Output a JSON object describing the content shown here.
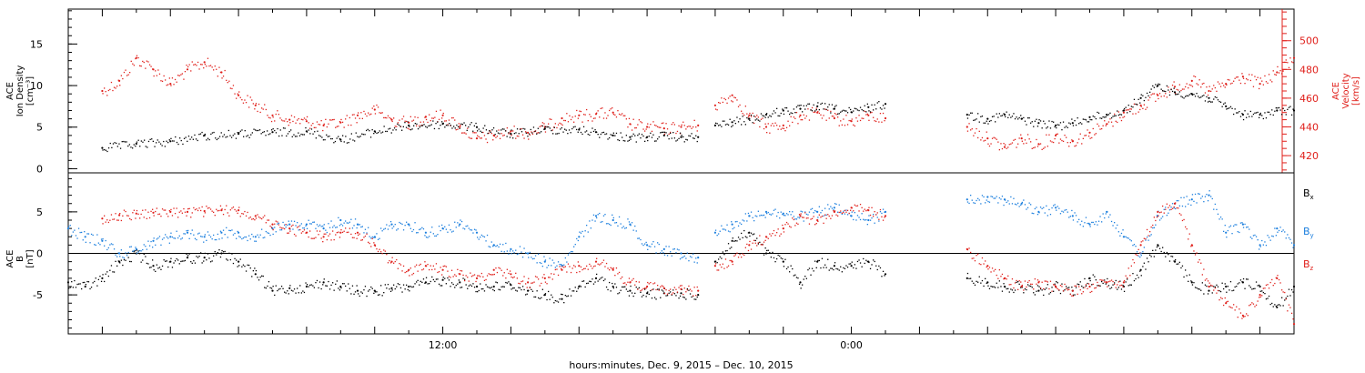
{
  "chart_data": [
    {
      "type": "scatter",
      "panel": "top",
      "ylabel_left": [
        "ACE",
        "Ion Density",
        "[cm⁻³]"
      ],
      "ylabel_right": [
        "ACE",
        "Velocity",
        "[km/s]"
      ],
      "ylim_left": [
        -0.5,
        19.2
      ],
      "ylim_right": [
        408,
        522
      ],
      "yticks_left": [
        0,
        5,
        10,
        15
      ],
      "yticks_right": [
        420,
        440,
        460,
        480,
        500
      ],
      "series": [
        {
          "axis": "left",
          "color": "#000000",
          "segments": [
            {
              "x": [
                0,
                1,
                2,
                3,
                4,
                5,
                6,
                7,
                8,
                9,
                10,
                11,
                12,
                13,
                14,
                14.5,
                15,
                15.5,
                16,
                16.5,
                17,
                17.5
              ],
              "y": [
                2.5,
                3,
                3.3,
                4,
                4.2,
                4.4,
                4.5,
                3.5,
                4.5,
                5.2,
                5.4,
                5,
                4.2,
                4.8,
                4.7,
                4.4,
                4.0,
                3.8,
                3.8,
                4.0,
                3.8,
                3.8
              ]
            },
            {
              "x": [
                18,
                18.5,
                19,
                19.5,
                20,
                20.5,
                21,
                21.5,
                22,
                22.5,
                23
              ],
              "y": [
                5.2,
                5.6,
                6,
                6.5,
                7,
                7.2,
                7.5,
                7.2,
                6.8,
                7.4,
                7.8
              ]
            },
            {
              "x": [
                25.4,
                26,
                26.5,
                27,
                27.5,
                28,
                28.5,
                29,
                29.5,
                30,
                30.5,
                31,
                31.5,
                32,
                32.5,
                33,
                33.5,
                34,
                34.5,
                35
              ],
              "y": [
                6.5,
                6,
                6.5,
                6,
                5.5,
                5.2,
                5.5,
                6.2,
                6.5,
                7,
                8.5,
                10,
                9.2,
                9,
                8.5,
                7.5,
                6.5,
                6.5,
                7,
                7
              ]
            }
          ]
        },
        {
          "axis": "right",
          "color": "#e0201b",
          "segments": [
            {
              "x": [
                0,
                0.5,
                1,
                1.5,
                2,
                2.5,
                3,
                3.5,
                4,
                4.5,
                5,
                5.5,
                6,
                6.5,
                7,
                7.5,
                8,
                8.5,
                9,
                9.5,
                10,
                10.5,
                11,
                11.5,
                12,
                12.5,
                13,
                13.5,
                14,
                14.5,
                15,
                15.5,
                16,
                16.5,
                17,
                17.5
              ],
              "y": [
                465,
                472,
                488,
                480,
                470,
                480,
                485,
                478,
                462,
                455,
                448,
                445,
                444,
                441,
                443,
                448,
                452,
                445,
                443,
                447,
                448,
                440,
                432,
                434,
                437,
                436,
                440,
                446,
                448,
                449,
                450,
                442,
                440,
                439,
                440,
                441
              ]
            },
            {
              "x": [
                18,
                18.5,
                19,
                19.5,
                20,
                20.5,
                21,
                21.5,
                22,
                22.5,
                23
              ],
              "y": [
                455,
                462,
                448,
                440,
                441,
                448,
                450,
                446,
                444,
                448,
                446
              ]
            },
            {
              "x": [
                25.4,
                26,
                26.5,
                27,
                27.5,
                28,
                28.5,
                29,
                29.5,
                30,
                30.5,
                31,
                31.5,
                32,
                32.5,
                33,
                33.5,
                34,
                34.5,
                35
              ],
              "y": [
                440,
                432,
                426,
                432,
                428,
                434,
                430,
                436,
                442,
                450,
                455,
                462,
                468,
                472,
                465,
                470,
                475,
                470,
                478,
                488
              ]
            }
          ]
        }
      ]
    },
    {
      "type": "scatter",
      "panel": "bottom",
      "ylabel": [
        "ACE",
        "B",
        "[nT]"
      ],
      "ylim": [
        -9.7,
        9.7
      ],
      "yticks": [
        -5,
        0,
        5
      ],
      "zero_line": true,
      "xlabel": "hours:minutes, Dec.  9, 2015 – Dec. 10, 2015",
      "xlim": [
        -1,
        35
      ],
      "xticks": [
        {
          "x": 10,
          "label": "12:00"
        },
        {
          "x": 22,
          "label": "0:00"
        }
      ],
      "legend": {
        "placement": "right",
        "labels": [
          {
            "text": "B",
            "sub": "x",
            "color": "#000000"
          },
          {
            "text": "B",
            "sub": "y",
            "color": "#1c7fde"
          },
          {
            "text": "B",
            "sub": "z",
            "color": "#e0201b"
          }
        ]
      },
      "series": [
        {
          "name": "Bx",
          "color": "#000000",
          "segments": [
            {
              "x": [
                -1,
                -0.5,
                0,
                0.5,
                1,
                1.5,
                2,
                2.5,
                3,
                3.5,
                4,
                4.5,
                5,
                5.5,
                6,
                6.5,
                7,
                7.5,
                8,
                8.5,
                9,
                9.5,
                10,
                10.5,
                11,
                11.5,
                12,
                12.5,
                13,
                13.5,
                14,
                14.5,
                15,
                15.5,
                16,
                16.5,
                17,
                17.5
              ],
              "y": [
                -3.5,
                -4,
                -3,
                -1,
                0,
                -1.5,
                -1,
                -0.5,
                -0.5,
                0,
                -1,
                -2.5,
                -4.5,
                -4.2,
                -4,
                -3.5,
                -4,
                -4.5,
                -4.5,
                -4.2,
                -4,
                -3.5,
                -3.2,
                -3.5,
                -4,
                -4,
                -3.8,
                -4.5,
                -5,
                -5.5,
                -4,
                -3,
                -4,
                -4.5,
                -4.8,
                -4.8,
                -4.8,
                -5
              ]
            },
            {
              "x": [
                18,
                18.5,
                19,
                19.5,
                20,
                20.5,
                21,
                21.5,
                22,
                22.5,
                23
              ],
              "y": [
                -1,
                1.5,
                2.5,
                0,
                -1,
                -3.5,
                -1,
                -1.5,
                -1.5,
                -1,
                -2.5
              ]
            },
            {
              "x": [
                25.4,
                26,
                26.5,
                27,
                27.5,
                28,
                28.5,
                29,
                29.5,
                30,
                30.5,
                31,
                31.5,
                32,
                32.5,
                33,
                33.5,
                34,
                34.5,
                35
              ],
              "y": [
                -3,
                -3.5,
                -4,
                -4,
                -4.5,
                -4,
                -4.5,
                -3,
                -3.5,
                -4,
                -2,
                1,
                -1,
                -3.5,
                -4.5,
                -4,
                -3.5,
                -4,
                -6.5,
                -4
              ]
            }
          ]
        },
        {
          "name": "By",
          "color": "#1c7fde",
          "segments": [
            {
              "x": [
                -1,
                -0.5,
                0,
                0.5,
                1,
                1.5,
                2,
                2.5,
                3,
                3.5,
                4,
                4.5,
                5,
                5.5,
                6,
                6.5,
                7,
                7.5,
                8,
                8.5,
                9,
                9.5,
                10,
                10.5,
                11,
                11.5,
                12,
                12.5,
                13,
                13.5,
                14,
                14.5,
                15,
                15.5,
                16,
                16.5,
                17,
                17.5
              ],
              "y": [
                3,
                2,
                1.5,
                0,
                0.5,
                1.5,
                2,
                2.5,
                2,
                2.5,
                2.5,
                2,
                3,
                3.5,
                3.5,
                3,
                4,
                3.5,
                2,
                3.5,
                3.5,
                2.5,
                3,
                3.5,
                2.5,
                1,
                0.5,
                0,
                -1,
                -1.5,
                2,
                4.5,
                4,
                3.5,
                1,
                0.5,
                0,
                -0.5
              ]
            },
            {
              "x": [
                18,
                18.5,
                19,
                19.5,
                20,
                20.5,
                21,
                21.5,
                22,
                22.5,
                23
              ],
              "y": [
                2.5,
                3.5,
                4.5,
                5,
                4.8,
                4.5,
                5,
                5.5,
                4.5,
                4,
                5
              ]
            },
            {
              "x": [
                25.4,
                26,
                26.5,
                27,
                27.5,
                28,
                28.5,
                29,
                29.5,
                30,
                30.5,
                31,
                31.5,
                32,
                32.5,
                33,
                33.5,
                34,
                34.5,
                35
              ],
              "y": [
                6.5,
                6.8,
                6.5,
                6,
                5,
                5.5,
                4.5,
                3.5,
                5,
                2,
                0,
                4.5,
                6,
                6.5,
                7,
                2.5,
                3.5,
                1,
                3,
                1
              ]
            }
          ]
        },
        {
          "name": "Bz",
          "color": "#e0201b",
          "segments": [
            {
              "x": [
                0,
                0.5,
                1,
                1.5,
                2,
                2.5,
                3,
                3.5,
                4,
                4.5,
                5,
                5.5,
                6,
                6.5,
                7,
                7.5,
                8,
                8.5,
                9,
                9.5,
                10,
                10.5,
                11,
                11.5,
                12,
                12.5,
                13,
                13.5,
                14,
                14.5,
                15,
                15.5,
                16,
                16.5,
                17,
                17.5
              ],
              "y": [
                4.2,
                4.6,
                4.8,
                4.9,
                5,
                5,
                5.1,
                5.2,
                5.2,
                4.5,
                3.5,
                3,
                2.5,
                2,
                2.5,
                2.5,
                1,
                -1,
                -2,
                -1.5,
                -2,
                -2.5,
                -3,
                -2,
                -2.5,
                -3.5,
                -3,
                -2,
                -1.5,
                -1,
                -2,
                -3.5,
                -4,
                -4.2,
                -4.3,
                -4.5
              ]
            },
            {
              "x": [
                18,
                18.5,
                19,
                19.5,
                20,
                20.5,
                21,
                21.5,
                22,
                22.5,
                23
              ],
              "y": [
                -1.5,
                -1,
                1,
                2,
                3,
                4.5,
                4,
                5,
                5.5,
                5.2,
                4.5
              ]
            },
            {
              "x": [
                25.4,
                26,
                26.5,
                27,
                27.5,
                28,
                28.5,
                29,
                29.5,
                30,
                30.5,
                31,
                31.5,
                32,
                32.5,
                33,
                33.5,
                34,
                34.5,
                35
              ],
              "y": [
                0.5,
                -1.5,
                -3,
                -4,
                -3.5,
                -4,
                -4.5,
                -4,
                -3.5,
                -3.5,
                1,
                5,
                6,
                1,
                -4,
                -6,
                -7.5,
                -5,
                -3,
                -8.5
              ]
            }
          ]
        }
      ]
    }
  ]
}
